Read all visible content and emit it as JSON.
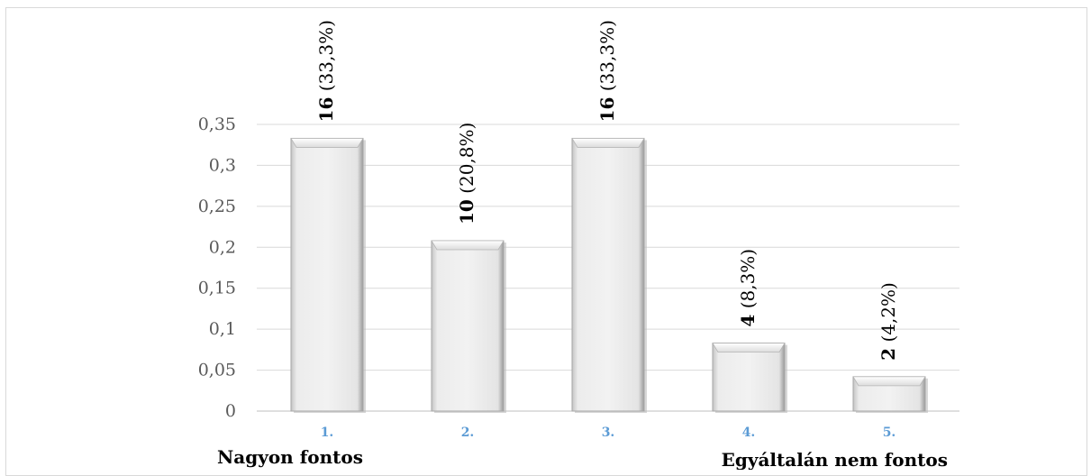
{
  "chart_data": {
    "type": "bar",
    "categories": [
      "1.",
      "2.",
      "3.",
      "4.",
      "5."
    ],
    "values": [
      0.333,
      0.208,
      0.333,
      0.083,
      0.042
    ],
    "data_labels": [
      {
        "count": "16",
        "pct": " (33,3%)"
      },
      {
        "count": "10",
        "pct": " (20,8%)"
      },
      {
        "count": "16",
        "pct": " (33,3%)"
      },
      {
        "count": "4",
        "pct": " (8,3%)"
      },
      {
        "count": "2",
        "pct": " (4,2%)"
      }
    ],
    "yticks": [
      "0",
      "0,05",
      "0,1",
      "0,15",
      "0,2",
      "0,25",
      "0,3",
      "0,35"
    ],
    "ylim": [
      0,
      0.35
    ],
    "grid": true,
    "bar_color": "#e6e6e6",
    "category_label_color": "#5b9bd5",
    "axis_end_labels": {
      "left": "Nagyon fontos",
      "right": "Egyáltalán nem fontos"
    }
  }
}
